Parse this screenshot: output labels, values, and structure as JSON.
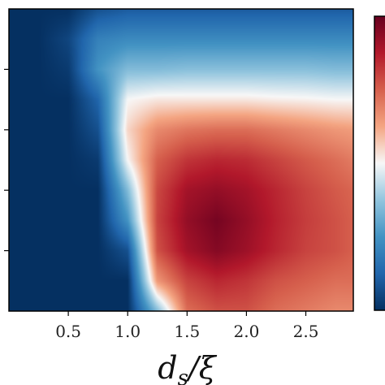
{
  "chart_data": {
    "type": "heatmap",
    "title": "",
    "xlabel": "d_s/ξ",
    "ylabel": "",
    "xlim": [
      0.0,
      2.9
    ],
    "ylim": [
      0.0,
      1.0
    ],
    "x_ticks": [
      0.5,
      1.0,
      1.5,
      2.0,
      2.5
    ],
    "x_tick_labels": [
      "0.5",
      "1.0",
      "1.5",
      "2.0",
      "2.5"
    ],
    "y_ticks": [
      0.2,
      0.4,
      0.6,
      0.8
    ],
    "y_tick_labels": [
      "",
      "",
      "",
      ""
    ],
    "colormap": "RdBu_r",
    "colormap_colors": [
      "#053061",
      "#2166ac",
      "#4393c3",
      "#92c5de",
      "#f7f7f7",
      "#f4a582",
      "#d6604d",
      "#b2182b",
      "#67001f"
    ],
    "colorbar": "right, partially visible",
    "grid": false,
    "x": [
      0.0,
      0.25,
      0.5,
      0.75,
      1.0,
      1.25,
      1.5,
      1.75,
      2.0,
      2.25,
      2.5,
      2.75,
      2.9
    ],
    "y": [
      0.0,
      0.1,
      0.2,
      0.3,
      0.4,
      0.5,
      0.6,
      0.7,
      0.8,
      0.9,
      1.0
    ],
    "z": [
      [
        -1.0,
        -1.0,
        -1.0,
        -1.0,
        -1.0,
        -0.3,
        0.45,
        0.55,
        0.55,
        0.45,
        0.4,
        0.35,
        0.35
      ],
      [
        -1.0,
        -1.0,
        -1.0,
        -1.0,
        -1.0,
        0.3,
        0.6,
        0.7,
        0.65,
        0.55,
        0.5,
        0.45,
        0.45
      ],
      [
        -1.0,
        -1.0,
        -1.0,
        -1.0,
        -0.85,
        0.55,
        0.8,
        0.9,
        0.82,
        0.7,
        0.6,
        0.55,
        0.5
      ],
      [
        -1.0,
        -1.0,
        -1.0,
        -1.0,
        -0.5,
        0.6,
        0.85,
        0.95,
        0.85,
        0.72,
        0.62,
        0.55,
        0.5
      ],
      [
        -1.0,
        -1.0,
        -1.0,
        -1.0,
        -0.3,
        0.58,
        0.8,
        0.85,
        0.8,
        0.7,
        0.6,
        0.52,
        0.48
      ],
      [
        -1.0,
        -1.0,
        -1.0,
        -0.95,
        0.0,
        0.5,
        0.65,
        0.7,
        0.68,
        0.6,
        0.52,
        0.45,
        0.4
      ],
      [
        -1.0,
        -1.0,
        -1.0,
        -0.85,
        0.1,
        0.35,
        0.42,
        0.45,
        0.45,
        0.4,
        0.35,
        0.3,
        0.28
      ],
      [
        -1.0,
        -1.0,
        -1.0,
        -0.75,
        0.0,
        0.05,
        0.05,
        0.05,
        0.05,
        0.03,
        0.02,
        0.0,
        0.0
      ],
      [
        -1.0,
        -1.0,
        -0.95,
        -0.5,
        -0.3,
        -0.3,
        -0.28,
        -0.28,
        -0.28,
        -0.28,
        -0.28,
        -0.3,
        -0.3
      ],
      [
        -1.0,
        -1.0,
        -0.9,
        -0.6,
        -0.55,
        -0.55,
        -0.55,
        -0.55,
        -0.55,
        -0.55,
        -0.55,
        -0.55,
        -0.55
      ],
      [
        -1.0,
        -1.0,
        -1.0,
        -0.85,
        -0.8,
        -0.8,
        -0.8,
        -0.8,
        -0.8,
        -0.8,
        -0.8,
        -0.8,
        -0.8
      ]
    ]
  }
}
